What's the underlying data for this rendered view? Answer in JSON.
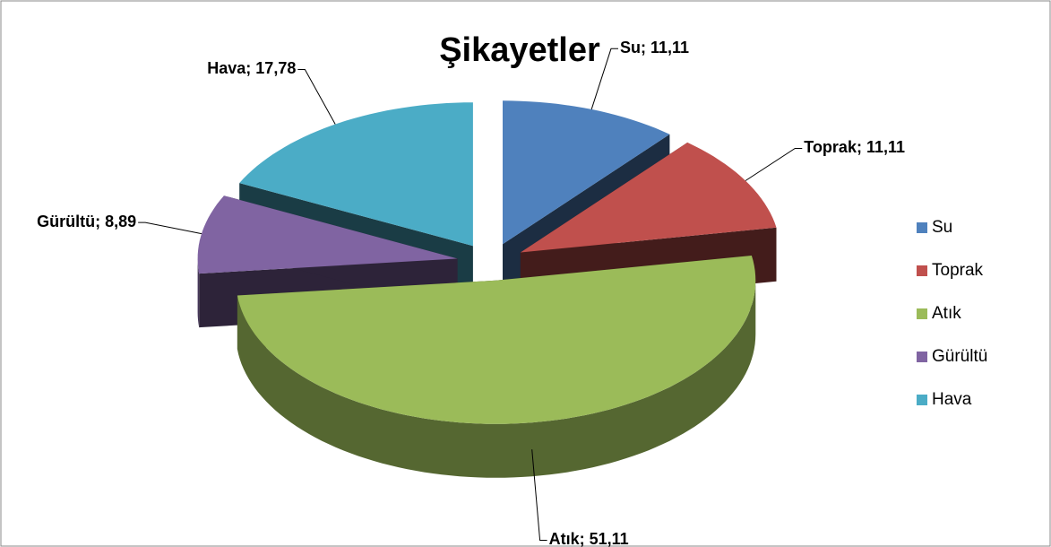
{
  "chart_data": {
    "type": "pie",
    "title": "Şikayetler",
    "categories": [
      "Su",
      "Toprak",
      "Atık",
      "Gürültü",
      "Hava"
    ],
    "values": [
      11.11,
      11.11,
      51.11,
      8.89,
      17.78
    ],
    "value_labels": [
      "Su; 11,11",
      "Toprak; 11,11",
      "Atık; 51,11",
      "Gürültü; 8,89",
      "Hava; 17,78"
    ],
    "colors": [
      "#4f81bd",
      "#c0504d",
      "#9bbb59",
      "#8064a2",
      "#4bacc6"
    ],
    "legend": "right"
  }
}
